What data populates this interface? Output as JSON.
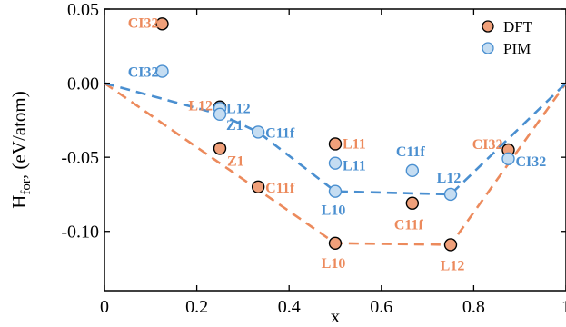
{
  "chart_data": {
    "type": "scatter",
    "xlabel": "x",
    "ylabel": "H",
    "ylabel_sub": "for",
    "ylabel_unit": ", (eV/atom)",
    "xlim": [
      0,
      1
    ],
    "ylim": [
      -0.14,
      0.05
    ],
    "x_ticks": [
      0,
      0.2,
      0.4,
      0.6,
      0.8,
      1
    ],
    "x_tick_labels": [
      "0",
      "0.2",
      "0.4",
      "0.6",
      "0.8",
      "1"
    ],
    "y_ticks": [
      0.05,
      0,
      -0.05,
      -0.1
    ],
    "y_tick_labels": [
      "0.05",
      "0.00",
      "-0.05",
      "-0.10"
    ],
    "legend_position": "top-right",
    "grid": false,
    "series": [
      {
        "name": "DFT",
        "marker_color": "#f0a07a",
        "label_color": "#ec8a5c",
        "points": [
          {
            "x": 0.125,
            "y": 0.04,
            "label": "CI32"
          },
          {
            "x": 0.25,
            "y": -0.016,
            "label": "L12"
          },
          {
            "x": 0.25,
            "y": -0.044,
            "label": "Z1"
          },
          {
            "x": 0.333,
            "y": -0.07,
            "label": "C11f"
          },
          {
            "x": 0.5,
            "y": -0.041,
            "label": "L11"
          },
          {
            "x": 0.5,
            "y": -0.108,
            "label": "L10"
          },
          {
            "x": 0.667,
            "y": -0.081,
            "label": "C11f"
          },
          {
            "x": 0.75,
            "y": -0.109,
            "label": "L12"
          },
          {
            "x": 0.875,
            "y": -0.045,
            "label": "CI32"
          }
        ],
        "hull": [
          [
            0,
            0
          ],
          [
            0.5,
            -0.108
          ],
          [
            0.75,
            -0.109
          ],
          [
            1,
            0
          ]
        ]
      },
      {
        "name": "PIM",
        "marker_color": "#c5ddf2",
        "label_color": "#4a8fd0",
        "points": [
          {
            "x": 0.125,
            "y": 0.008,
            "label": "CI32"
          },
          {
            "x": 0.25,
            "y": -0.017,
            "label": "L12"
          },
          {
            "x": 0.25,
            "y": -0.021,
            "label": "Z1"
          },
          {
            "x": 0.333,
            "y": -0.033,
            "label": "C11f"
          },
          {
            "x": 0.5,
            "y": -0.054,
            "label": "L11"
          },
          {
            "x": 0.5,
            "y": -0.073,
            "label": "L10"
          },
          {
            "x": 0.667,
            "y": -0.059,
            "label": "C11f"
          },
          {
            "x": 0.75,
            "y": -0.075,
            "label": "L12"
          },
          {
            "x": 0.875,
            "y": -0.051,
            "label": "CI32"
          }
        ],
        "hull": [
          [
            0,
            0
          ],
          [
            0.25,
            -0.021
          ],
          [
            0.333,
            -0.033
          ],
          [
            0.5,
            -0.073
          ],
          [
            0.75,
            -0.075
          ],
          [
            1,
            0
          ]
        ]
      }
    ]
  }
}
